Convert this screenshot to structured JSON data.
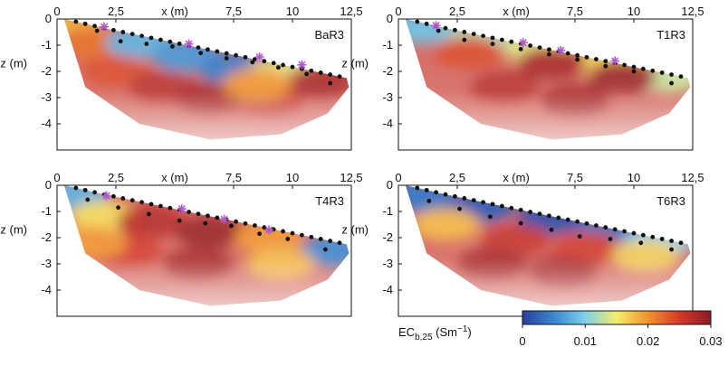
{
  "chart_data": [
    {
      "type": "heatmap",
      "panel_label": "BaR3",
      "xlabel": "x (m)",
      "ylabel": "z (m)",
      "xlim": [
        0,
        12.5
      ],
      "ylim": [
        -5,
        0
      ],
      "x_ticks": [
        "0",
        "2,5",
        "7,5",
        "10",
        "12,5"
      ],
      "x_tick_values": [
        0,
        2.5,
        7.5,
        10,
        12.5
      ],
      "y_ticks": [
        "0",
        "-1",
        "-2",
        "-3",
        "-4"
      ],
      "y_tick_values": [
        0,
        -1,
        -2,
        -3,
        -4
      ],
      "surface": {
        "x": [
          0.3,
          2,
          4,
          6,
          8,
          10,
          12.3
        ],
        "z": [
          0,
          -0.35,
          -0.72,
          -1.09,
          -1.46,
          -1.83,
          -2.25
        ]
      },
      "electrodes": {
        "x": [
          0.8,
          1.2,
          1.6,
          2.0,
          2.4,
          2.8,
          3.2,
          3.6,
          4.0,
          4.4,
          4.8,
          5.2,
          5.6,
          6.0,
          6.4,
          6.8,
          7.2,
          7.6,
          8.0,
          8.4,
          8.8,
          9.2,
          9.6,
          10.0,
          10.4,
          10.8,
          11.2,
          11.6,
          12.0
        ]
      },
      "sensors": [
        {
          "x": 1.7,
          "z": -0.45,
          "type": "dot"
        },
        {
          "x": 2.7,
          "z": -0.85,
          "type": "dot"
        },
        {
          "x": 3.8,
          "z": -0.95,
          "type": "dot"
        },
        {
          "x": 4.9,
          "z": -1.05,
          "type": "dot"
        },
        {
          "x": 6.1,
          "z": -1.3,
          "type": "dot"
        },
        {
          "x": 7.2,
          "z": -1.5,
          "type": "dot"
        },
        {
          "x": 8.3,
          "z": -1.65,
          "type": "dot"
        },
        {
          "x": 9.4,
          "z": -1.85,
          "type": "dot"
        },
        {
          "x": 10.6,
          "z": -2.1,
          "type": "dot"
        },
        {
          "x": 11.6,
          "z": -2.45,
          "type": "dot"
        },
        {
          "x": 2.0,
          "z": -0.3,
          "type": "star"
        },
        {
          "x": 5.6,
          "z": -0.95,
          "type": "star"
        },
        {
          "x": 8.6,
          "z": -1.45,
          "type": "star"
        },
        {
          "x": 10.4,
          "z": -1.75,
          "type": "star"
        }
      ],
      "ec_zones": [
        {
          "x": 0.8,
          "z": -0.4,
          "value": 0.018
        },
        {
          "x": 1.5,
          "z": -0.9,
          "value": 0.022
        },
        {
          "x": 3.5,
          "z": -0.9,
          "value": 0.008
        },
        {
          "x": 5.5,
          "z": -1.4,
          "value": 0.006
        },
        {
          "x": 7.5,
          "z": -1.9,
          "value": 0.004
        },
        {
          "x": 9.5,
          "z": -2.1,
          "value": 0.014
        },
        {
          "x": 11.2,
          "z": -2.4,
          "value": 0.028
        },
        {
          "x": 2.5,
          "z": -2.0,
          "value": 0.024
        },
        {
          "x": 4.5,
          "z": -2.6,
          "value": 0.027
        },
        {
          "x": 6.5,
          "z": -3.0,
          "value": 0.028
        },
        {
          "x": 9.0,
          "z": -3.1,
          "value": 0.026
        },
        {
          "x": 8.5,
          "z": -2.5,
          "value": 0.02
        }
      ]
    },
    {
      "type": "heatmap",
      "panel_label": "T1R3",
      "xlabel": "x (m)",
      "ylabel": "z (m)",
      "xlim": [
        0,
        12.5
      ],
      "ylim": [
        -5,
        0
      ],
      "x_ticks": [
        "0",
        "2,5",
        "7,5",
        "10",
        "12,5"
      ],
      "x_tick_values": [
        0,
        2.5,
        7.5,
        10,
        12.5
      ],
      "y_ticks": [
        "0",
        "-1",
        "-2",
        "-3",
        "-4"
      ],
      "y_tick_values": [
        0,
        -1,
        -2,
        -3,
        -4
      ],
      "surface": {
        "x": [
          0.3,
          2,
          4,
          6,
          8,
          10,
          12.3
        ],
        "z": [
          0,
          -0.35,
          -0.72,
          -1.09,
          -1.46,
          -1.83,
          -2.25
        ]
      },
      "electrodes": {
        "x": [
          0.8,
          1.2,
          1.6,
          2.0,
          2.4,
          2.8,
          3.2,
          3.6,
          4.0,
          4.4,
          4.8,
          5.2,
          5.6,
          6.0,
          6.4,
          6.8,
          7.2,
          7.6,
          8.0,
          8.4,
          8.8,
          9.2,
          9.6,
          10.0,
          10.4,
          10.8,
          11.2,
          11.6,
          12.0
        ]
      },
      "sensors": [
        {
          "x": 1.7,
          "z": -0.45,
          "type": "dot"
        },
        {
          "x": 2.8,
          "z": -0.8,
          "type": "dot"
        },
        {
          "x": 4.0,
          "z": -0.95,
          "type": "dot"
        },
        {
          "x": 5.2,
          "z": -1.15,
          "type": "dot"
        },
        {
          "x": 6.4,
          "z": -1.35,
          "type": "dot"
        },
        {
          "x": 7.6,
          "z": -1.55,
          "type": "dot"
        },
        {
          "x": 8.8,
          "z": -1.8,
          "type": "dot"
        },
        {
          "x": 10.0,
          "z": -2.0,
          "type": "dot"
        },
        {
          "x": 11.6,
          "z": -2.45,
          "type": "dot"
        },
        {
          "x": 1.6,
          "z": -0.25,
          "type": "star"
        },
        {
          "x": 5.3,
          "z": -0.9,
          "type": "star"
        },
        {
          "x": 6.9,
          "z": -1.2,
          "type": "star"
        },
        {
          "x": 9.2,
          "z": -1.6,
          "type": "star"
        }
      ],
      "ec_zones": [
        {
          "x": 1.0,
          "z": -0.35,
          "value": 0.009
        },
        {
          "x": 3.5,
          "z": -0.75,
          "value": 0.012
        },
        {
          "x": 6.0,
          "z": -1.15,
          "value": 0.014
        },
        {
          "x": 9.0,
          "z": -1.65,
          "value": 0.016
        },
        {
          "x": 11.5,
          "z": -2.2,
          "value": 0.013
        },
        {
          "x": 3.0,
          "z": -1.3,
          "value": 0.024
        },
        {
          "x": 6.5,
          "z": -1.7,
          "value": 0.028
        },
        {
          "x": 9.5,
          "z": -2.2,
          "value": 0.029
        },
        {
          "x": 4.5,
          "z": -2.6,
          "value": 0.027
        },
        {
          "x": 7.5,
          "z": -3.1,
          "value": 0.028
        }
      ]
    },
    {
      "type": "heatmap",
      "panel_label": "T4R3",
      "xlabel": "x (m)",
      "ylabel": "z (m)",
      "xlim": [
        0,
        12.5
      ],
      "ylim": [
        -5,
        0
      ],
      "x_ticks": [
        "0",
        "2,5",
        "7,5",
        "10",
        "12,5"
      ],
      "x_tick_values": [
        0,
        2.5,
        7.5,
        10,
        12.5
      ],
      "y_ticks": [
        "0",
        "-1",
        "-2",
        "-3",
        "-4"
      ],
      "y_tick_values": [
        0,
        -1,
        -2,
        -3,
        -4
      ],
      "surface": {
        "x": [
          0.3,
          2,
          4,
          6,
          8,
          10,
          12.3
        ],
        "z": [
          0,
          -0.35,
          -0.72,
          -1.09,
          -1.46,
          -1.83,
          -2.25
        ]
      },
      "electrodes": {
        "x": [
          0.8,
          1.2,
          1.6,
          2.0,
          2.4,
          2.8,
          3.2,
          3.6,
          4.0,
          4.4,
          4.8,
          5.2,
          5.6,
          6.0,
          6.4,
          6.8,
          7.2,
          7.6,
          8.0,
          8.4,
          8.8,
          9.2,
          9.6,
          10.0,
          10.4,
          10.8,
          11.2,
          11.6,
          12.0
        ]
      },
      "sensors": [
        {
          "x": 1.3,
          "z": -0.55,
          "type": "dot"
        },
        {
          "x": 2.6,
          "z": -0.85,
          "type": "dot"
        },
        {
          "x": 3.9,
          "z": -1.1,
          "type": "dot"
        },
        {
          "x": 5.2,
          "z": -1.35,
          "type": "dot"
        },
        {
          "x": 6.3,
          "z": -1.45,
          "type": "dot"
        },
        {
          "x": 7.4,
          "z": -1.55,
          "type": "dot"
        },
        {
          "x": 8.6,
          "z": -1.85,
          "type": "dot"
        },
        {
          "x": 9.8,
          "z": -2.05,
          "type": "dot"
        },
        {
          "x": 11.4,
          "z": -2.45,
          "type": "dot"
        },
        {
          "x": 2.1,
          "z": -0.4,
          "type": "star"
        },
        {
          "x": 5.3,
          "z": -0.9,
          "type": "star"
        },
        {
          "x": 7.1,
          "z": -1.3,
          "type": "star"
        },
        {
          "x": 9.0,
          "z": -1.7,
          "type": "star"
        }
      ],
      "ec_zones": [
        {
          "x": 0.8,
          "z": -0.4,
          "value": 0.008
        },
        {
          "x": 2.0,
          "z": -1.2,
          "value": 0.016
        },
        {
          "x": 4.0,
          "z": -1.4,
          "value": 0.027
        },
        {
          "x": 6.5,
          "z": -1.8,
          "value": 0.029
        },
        {
          "x": 9.0,
          "z": -2.0,
          "value": 0.02
        },
        {
          "x": 11.8,
          "z": -2.5,
          "value": 0.005
        },
        {
          "x": 3.0,
          "z": -2.5,
          "value": 0.025
        },
        {
          "x": 6.0,
          "z": -3.0,
          "value": 0.028
        },
        {
          "x": 9.5,
          "z": -3.0,
          "value": 0.018
        },
        {
          "x": 1.5,
          "z": -2.2,
          "value": 0.02
        }
      ]
    },
    {
      "type": "heatmap",
      "panel_label": "T6R3",
      "xlabel": "x (m)",
      "ylabel": "z (m)",
      "xlim": [
        0,
        12.5
      ],
      "ylim": [
        -5,
        0
      ],
      "x_ticks": [
        "0",
        "2,5",
        "7,5",
        "10",
        "12,5"
      ],
      "x_tick_values": [
        0,
        2.5,
        7.5,
        10,
        12.5
      ],
      "y_ticks": [
        "0",
        "-1",
        "-2",
        "-3",
        "-4"
      ],
      "y_tick_values": [
        0,
        -1,
        -2,
        -3,
        -4
      ],
      "surface": {
        "x": [
          0.3,
          2,
          4,
          6,
          8,
          10,
          12.3
        ],
        "z": [
          0,
          -0.35,
          -0.72,
          -1.09,
          -1.46,
          -1.83,
          -2.25
        ]
      },
      "electrodes": {
        "x": [
          0.8,
          1.2,
          1.6,
          2.0,
          2.4,
          2.8,
          3.2,
          3.6,
          4.0,
          4.4,
          4.8,
          5.2,
          5.6,
          6.0,
          6.4,
          6.8,
          7.2,
          7.6,
          8.0,
          8.4,
          8.8,
          9.2,
          9.6,
          10.0,
          10.4,
          10.8,
          11.2,
          11.6,
          12.0
        ]
      },
      "sensors": [
        {
          "x": 1.3,
          "z": -0.6,
          "type": "dot"
        },
        {
          "x": 2.6,
          "z": -0.9,
          "type": "dot"
        },
        {
          "x": 3.9,
          "z": -1.2,
          "type": "dot"
        },
        {
          "x": 5.2,
          "z": -1.45,
          "type": "dot"
        },
        {
          "x": 6.5,
          "z": -1.7,
          "type": "dot"
        },
        {
          "x": 7.7,
          "z": -1.95,
          "type": "dot"
        },
        {
          "x": 9.0,
          "z": -2.05,
          "type": "dot"
        },
        {
          "x": 10.3,
          "z": -2.2,
          "type": "dot"
        },
        {
          "x": 11.6,
          "z": -2.45,
          "type": "dot"
        }
      ],
      "ec_zones": [
        {
          "x": 1.0,
          "z": -0.45,
          "value": 0.004
        },
        {
          "x": 3.5,
          "z": -0.8,
          "value": 0.002
        },
        {
          "x": 6.5,
          "z": -1.25,
          "value": 0.001
        },
        {
          "x": 9.0,
          "z": -1.7,
          "value": 0.003
        },
        {
          "x": 11.0,
          "z": -2.2,
          "value": 0.01
        },
        {
          "x": 2.0,
          "z": -1.5,
          "value": 0.018
        },
        {
          "x": 5.0,
          "z": -2.1,
          "value": 0.026
        },
        {
          "x": 8.0,
          "z": -2.4,
          "value": 0.025
        },
        {
          "x": 10.5,
          "z": -2.7,
          "value": 0.017
        },
        {
          "x": 4.0,
          "z": -3.0,
          "value": 0.028
        },
        {
          "x": 7.0,
          "z": -3.3,
          "value": 0.028
        }
      ]
    }
  ],
  "colorbar": {
    "label_main": "EC",
    "label_sub": "b,25",
    "label_unit_open": " (Sm",
    "label_unit_sup": "−1",
    "label_unit_close": ")",
    "range": [
      0,
      0.03
    ],
    "ticks": [
      "0",
      "0.01",
      "0.02",
      "0.03"
    ],
    "tick_values": [
      0,
      0.01,
      0.02,
      0.03
    ],
    "colors": [
      "#2a3fa0",
      "#3a86cf",
      "#7fd0e8",
      "#f4ec6a",
      "#f0942e",
      "#d33a2b",
      "#8c1c28"
    ]
  },
  "colors": {
    "electrode": "#111111",
    "sensor_star": "#b05cc8"
  }
}
